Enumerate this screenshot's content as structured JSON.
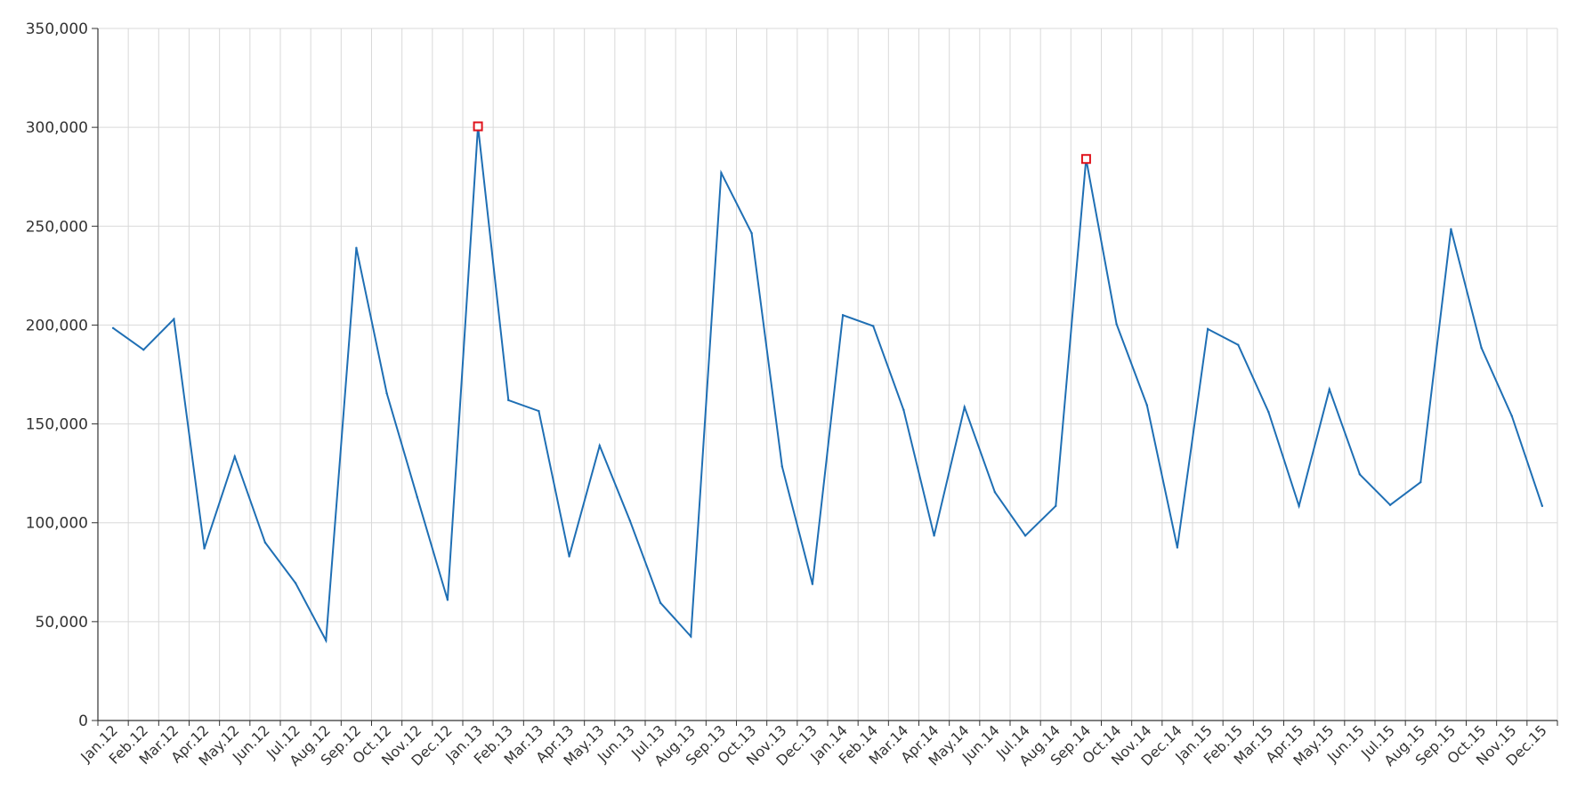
{
  "chart_data": {
    "type": "line",
    "title": "",
    "xlabel": "",
    "ylabel": "",
    "ylim": [
      0,
      350000
    ],
    "yticks": [
      0,
      50000,
      100000,
      150000,
      200000,
      250000,
      300000,
      350000
    ],
    "ytick_labels": [
      "0",
      "50,000",
      "100,000",
      "150,000",
      "200,000",
      "250,000",
      "300,000",
      "350,000"
    ],
    "grid": true,
    "legend": "none",
    "categories": [
      "Jan.12",
      "Feb.12",
      "Mar.12",
      "Apr.12",
      "May.12",
      "Jun.12",
      "Jul.12",
      "Aug.12",
      "Sep.12",
      "Oct.12",
      "Nov.12",
      "Dec.12",
      "Jan.13",
      "Feb.13",
      "Mar.13",
      "Apr.13",
      "May.13",
      "Jun.13",
      "Jul.13",
      "Aug.13",
      "Sep.13",
      "Oct.13",
      "Nov.13",
      "Dec.13",
      "Jan.14",
      "Feb.14",
      "Mar.14",
      "Apr.14",
      "May.14",
      "Jun.14",
      "Jul.14",
      "Aug.14",
      "Sep.14",
      "Oct.14",
      "Nov.14",
      "Dec.14",
      "Jan.15",
      "Feb.15",
      "Mar.15",
      "Apr.15",
      "May.15",
      "Jun.15",
      "Jul.15",
      "Aug.15",
      "Sep.15",
      "Oct.15",
      "Nov.15",
      "Dec.15"
    ],
    "series": [
      {
        "color": "#1f6fb4",
        "values": [
          198500,
          187500,
          203000,
          87000,
          133500,
          90000,
          69500,
          40500,
          239000,
          165500,
          113000,
          61000,
          300500,
          162000,
          156500,
          83000,
          139000,
          101000,
          59500,
          42500,
          277000,
          246500,
          128500,
          69000,
          205000,
          199500,
          157000,
          93500,
          158500,
          115500,
          93500,
          108500,
          284000,
          200500,
          159500,
          87500,
          198000,
          190000,
          156000,
          108500,
          167500,
          124500,
          109000,
          120500,
          248500,
          188500,
          154000,
          108500
        ]
      }
    ],
    "highlights": [
      {
        "category": "Jan.13",
        "value": 300500,
        "color": "#e0121b"
      },
      {
        "category": "Sep.14",
        "value": 284000,
        "color": "#e0121b"
      }
    ]
  }
}
